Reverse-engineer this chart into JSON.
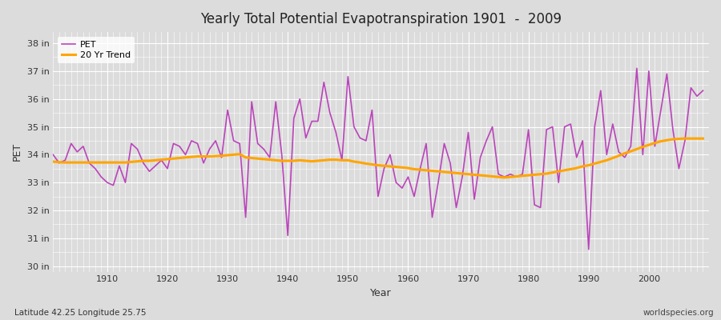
{
  "title": "Yearly Total Potential Evapotranspiration 1901  -  2009",
  "xlabel": "Year",
  "ylabel": "PET",
  "subtitle_left": "Latitude 42.25 Longitude 25.75",
  "subtitle_right": "worldspecies.org",
  "pet_color": "#bb44bb",
  "trend_color": "#ffa500",
  "bg_color": "#dcdcdc",
  "ylim": [
    29.8,
    38.4
  ],
  "yticks": [
    30,
    31,
    32,
    33,
    34,
    35,
    36,
    37,
    38
  ],
  "ytick_labels": [
    "30 in",
    "31 in",
    "32 in",
    "33 in",
    "34 in",
    "35 in",
    "36 in",
    "37 in",
    "38 in"
  ],
  "years": [
    1901,
    1902,
    1903,
    1904,
    1905,
    1906,
    1907,
    1908,
    1909,
    1910,
    1911,
    1912,
    1913,
    1914,
    1915,
    1916,
    1917,
    1918,
    1919,
    1920,
    1921,
    1922,
    1923,
    1924,
    1925,
    1926,
    1927,
    1928,
    1929,
    1930,
    1931,
    1932,
    1933,
    1934,
    1935,
    1936,
    1937,
    1938,
    1939,
    1940,
    1941,
    1942,
    1943,
    1944,
    1945,
    1946,
    1947,
    1948,
    1949,
    1950,
    1951,
    1952,
    1953,
    1954,
    1955,
    1956,
    1957,
    1958,
    1959,
    1960,
    1961,
    1962,
    1963,
    1964,
    1965,
    1966,
    1967,
    1968,
    1969,
    1970,
    1971,
    1972,
    1973,
    1974,
    1975,
    1976,
    1977,
    1978,
    1979,
    1980,
    1981,
    1982,
    1983,
    1984,
    1985,
    1986,
    1987,
    1988,
    1989,
    1990,
    1991,
    1992,
    1993,
    1994,
    1995,
    1996,
    1997,
    1998,
    1999,
    2000,
    2001,
    2002,
    2003,
    2004,
    2005,
    2006,
    2007,
    2008,
    2009
  ],
  "pet_values": [
    34.0,
    33.7,
    33.8,
    34.4,
    34.1,
    34.3,
    33.7,
    33.5,
    33.2,
    33.0,
    32.9,
    33.6,
    33.0,
    34.4,
    34.2,
    33.7,
    33.4,
    33.6,
    33.8,
    33.5,
    34.4,
    34.3,
    34.0,
    34.5,
    34.4,
    33.7,
    34.2,
    34.5,
    33.9,
    35.6,
    34.5,
    34.4,
    31.75,
    35.9,
    34.4,
    34.2,
    33.9,
    35.9,
    34.0,
    31.1,
    35.3,
    36.0,
    34.6,
    35.2,
    35.2,
    36.6,
    35.5,
    34.8,
    33.8,
    36.8,
    35.0,
    34.6,
    34.5,
    35.6,
    32.5,
    33.5,
    34.0,
    33.0,
    32.8,
    33.2,
    32.5,
    33.5,
    34.4,
    31.75,
    33.0,
    34.4,
    33.7,
    32.1,
    33.2,
    34.8,
    32.4,
    33.9,
    34.5,
    35.0,
    33.3,
    33.2,
    33.3,
    33.2,
    33.3,
    34.9,
    32.2,
    32.1,
    34.9,
    35.0,
    33.0,
    35.0,
    35.1,
    33.9,
    34.5,
    30.6,
    35.0,
    36.3,
    34.0,
    35.1,
    34.1,
    33.9,
    34.3,
    37.1,
    34.0,
    37.0,
    34.3,
    35.6,
    36.9,
    34.9,
    33.5,
    34.5,
    36.4,
    36.1,
    36.3
  ],
  "trend_values": [
    33.75,
    33.73,
    33.72,
    33.72,
    33.72,
    33.72,
    33.72,
    33.72,
    33.72,
    33.72,
    33.72,
    33.72,
    33.72,
    33.74,
    33.76,
    33.78,
    33.78,
    33.8,
    33.82,
    33.84,
    33.86,
    33.88,
    33.9,
    33.92,
    33.94,
    33.94,
    33.94,
    33.95,
    33.96,
    33.98,
    34.0,
    34.02,
    33.9,
    33.88,
    33.86,
    33.84,
    33.82,
    33.8,
    33.78,
    33.78,
    33.78,
    33.8,
    33.78,
    33.76,
    33.78,
    33.8,
    33.82,
    33.82,
    33.8,
    33.8,
    33.75,
    33.72,
    33.68,
    33.65,
    33.62,
    33.6,
    33.58,
    33.56,
    33.54,
    33.52,
    33.48,
    33.46,
    33.44,
    33.42,
    33.4,
    33.38,
    33.36,
    33.34,
    33.32,
    33.3,
    33.28,
    33.26,
    33.24,
    33.22,
    33.2,
    33.18,
    33.2,
    33.22,
    33.24,
    33.26,
    33.28,
    33.3,
    33.32,
    33.36,
    33.4,
    33.44,
    33.48,
    33.52,
    33.58,
    33.62,
    33.68,
    33.74,
    33.8,
    33.88,
    33.96,
    34.05,
    34.12,
    34.2,
    34.28,
    34.35,
    34.42,
    34.48,
    34.52,
    34.55,
    34.57,
    34.58,
    34.58,
    34.58,
    34.58
  ]
}
